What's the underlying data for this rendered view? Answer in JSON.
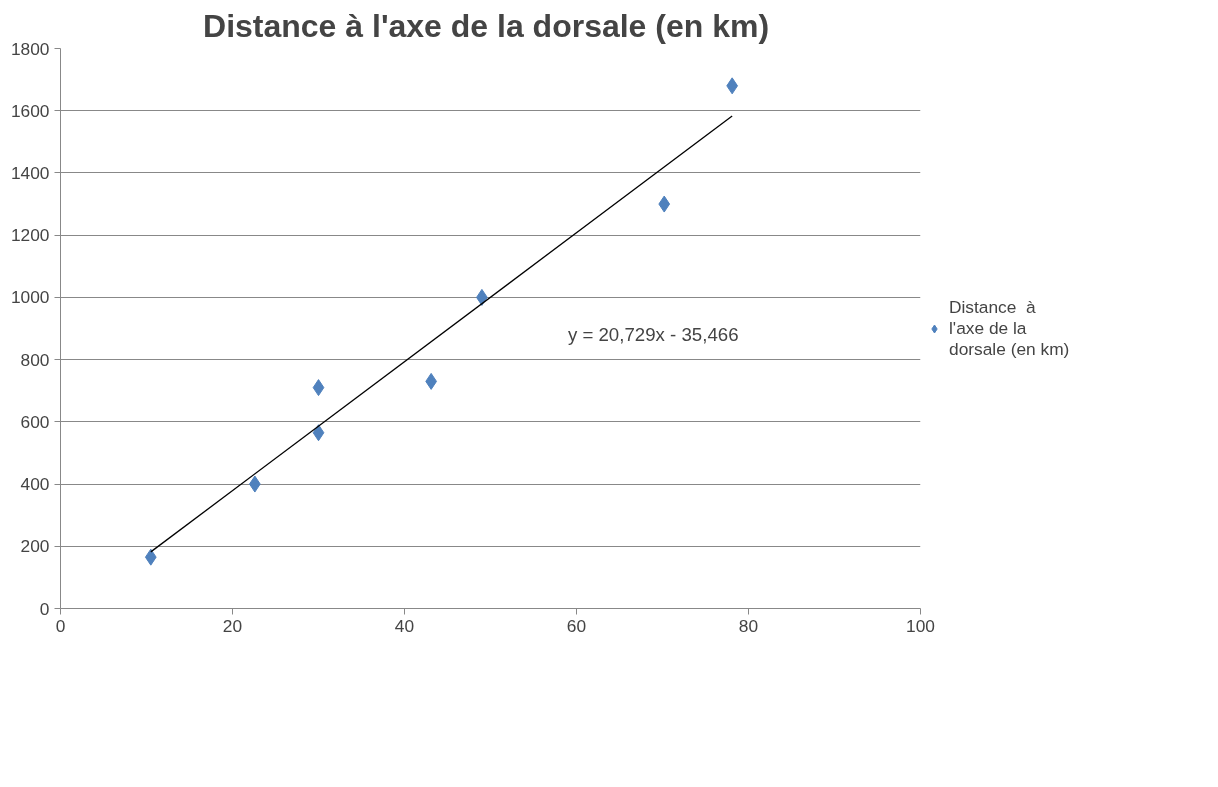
{
  "chart_data": {
    "type": "scatter",
    "title": "Distance  à l'axe de la dorsale (en km)",
    "series": [
      {
        "name": "Distance  à l'axe de la dorsale (en km)",
        "color": "#4f81bd",
        "marker": "diamond",
        "x": [
          10.5,
          22.6,
          30.0,
          30.0,
          43.1,
          49.0,
          70.2,
          78.1
        ],
        "values": [
          165,
          400,
          565,
          710,
          730,
          1000,
          1300,
          1680
        ]
      },
      {
        "type": "line",
        "color": "#000000",
        "line_style": "solid",
        "x": [
          10.5,
          78.1
        ],
        "values": [
          182,
          1583
        ]
      }
    ],
    "annotations": [
      "y = 20,729x - 35,466"
    ],
    "xlim": [
      0,
      100
    ],
    "xticks": [
      0,
      20,
      40,
      60,
      80,
      100
    ],
    "ylim": [
      0,
      1800
    ],
    "yticks": [
      0,
      200,
      400,
      600,
      800,
      1000,
      1200,
      1400,
      1600,
      1800
    ],
    "grid": "y",
    "legend": "right"
  }
}
